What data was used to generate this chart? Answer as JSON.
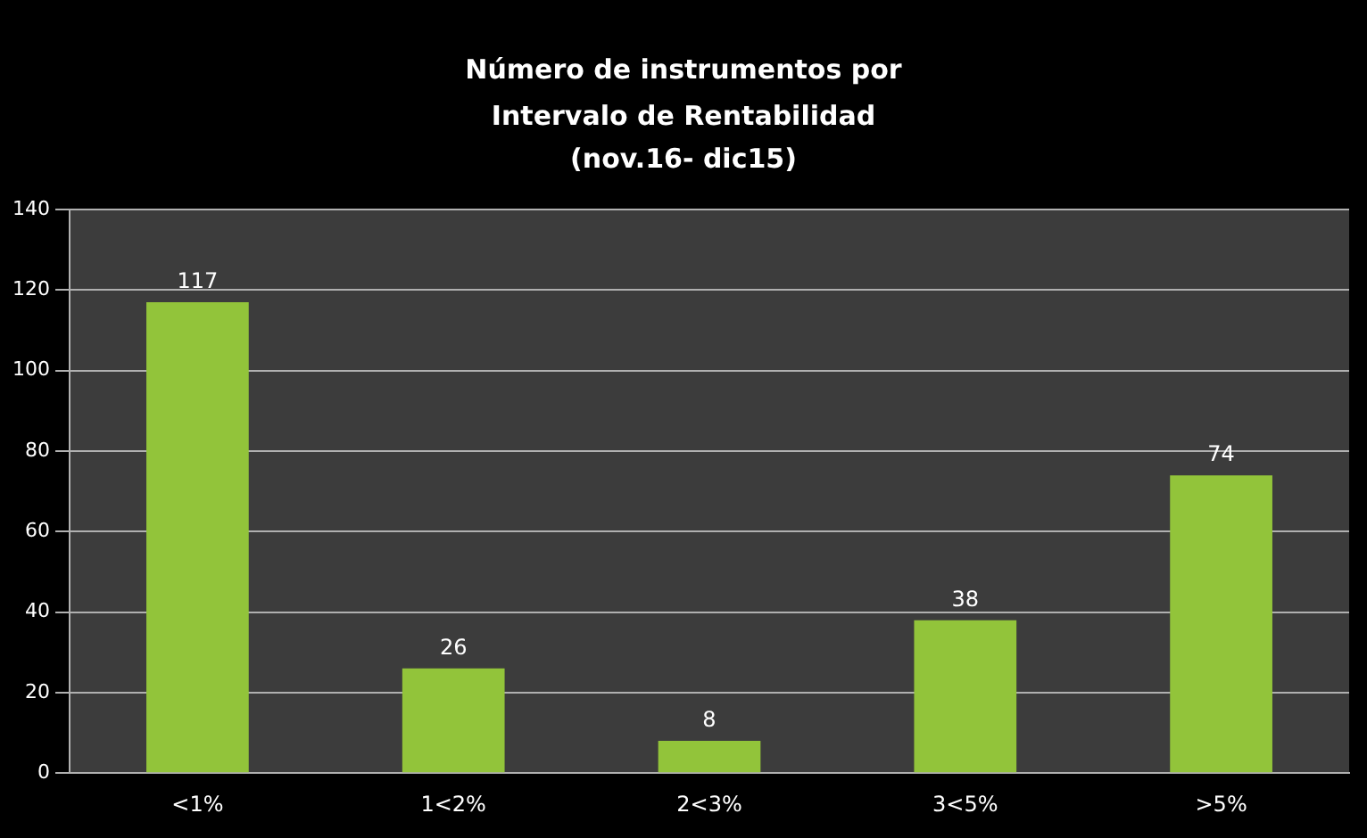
{
  "chart_data": {
    "type": "bar",
    "title": "Número de instrumentos por Intervalo de Rentabilidad",
    "subtitle": "(nov.16- dic15)",
    "categories": [
      "<1%",
      "1<2%",
      "2<3%",
      "3<5%",
      ">5%"
    ],
    "values": [
      117,
      26,
      8,
      38,
      74
    ],
    "color": "#92c43a",
    "ylim": [
      0,
      140
    ],
    "yticks": [
      0,
      20,
      40,
      60,
      80,
      100,
      120,
      140
    ],
    "grid": "y",
    "data_labels": true,
    "legend": false
  }
}
